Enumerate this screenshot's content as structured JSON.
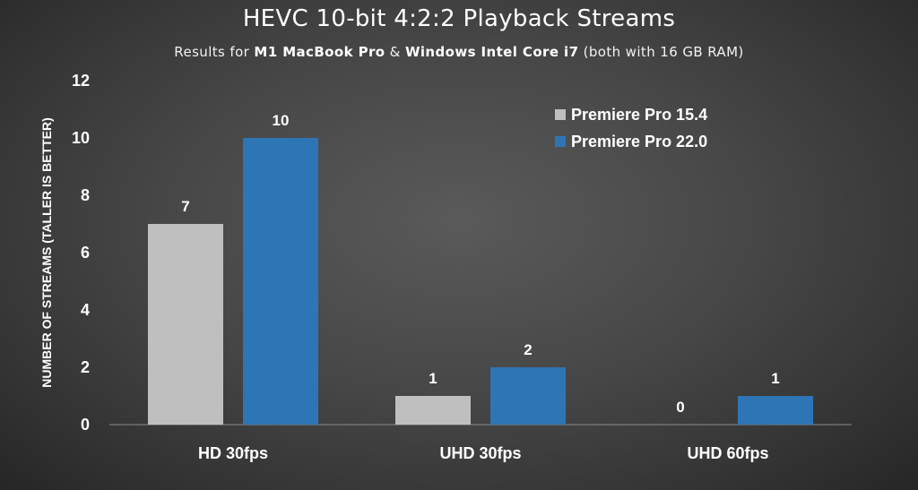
{
  "header": {
    "title": "HEVC 10-bit 4:2:2 Playback Streams",
    "subtitle_parts": [
      {
        "text": "Results for ",
        "bold": false
      },
      {
        "text": "M1 MacBook Pro",
        "bold": true
      },
      {
        "text": " & ",
        "bold": false
      },
      {
        "text": "Windows Intel Core i7",
        "bold": true
      },
      {
        "text": " (both with 16 GB RAM)",
        "bold": false
      }
    ]
  },
  "chart_data": {
    "type": "bar",
    "title": "HEVC 10-bit 4:2:2 Playback Streams",
    "subtitle": "Results for M1 MacBook Pro & Windows Intel Core i7 (both with 16 GB RAM)",
    "categories": [
      "HD 30fps",
      "UHD 30fps",
      "UHD 60fps"
    ],
    "series": [
      {
        "name": "Premiere Pro 15.4",
        "color": "#bfbfbf",
        "values": [
          7,
          1,
          0
        ]
      },
      {
        "name": "Premiere Pro 22.0",
        "color": "#2e75b6",
        "values": [
          10,
          2,
          1
        ]
      }
    ],
    "xlabel": "",
    "ylabel": "NUMBER OF STREAMS (TALLER IS BETTER)",
    "ylim": [
      0,
      12
    ],
    "yticks": [
      0,
      2,
      4,
      6,
      8,
      10,
      12
    ],
    "grid": false,
    "legend_position": "top-right",
    "data_labels": true
  }
}
